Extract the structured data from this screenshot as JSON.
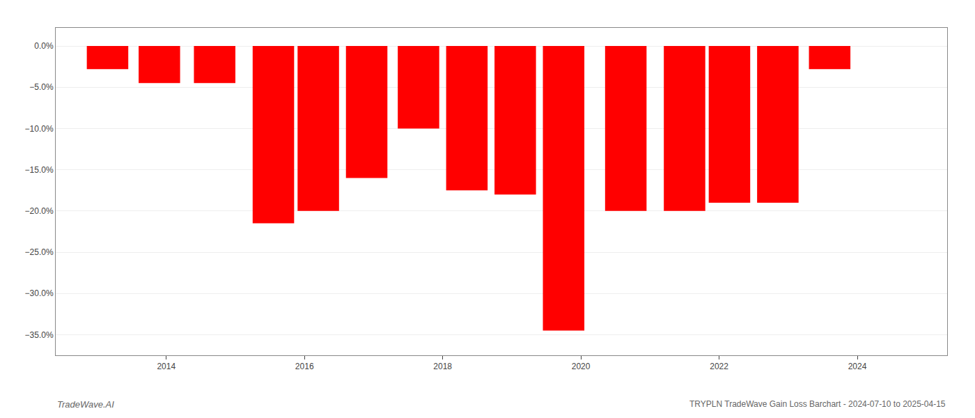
{
  "chart_data": {
    "type": "bar",
    "title": "TRYPLN TradeWave Gain Loss Barchart - 2024-07-10 to 2025-04-15",
    "annotations": [
      "TradeWave.AI"
    ],
    "x": [
      2013.15,
      2013.9,
      2014.7,
      2015.55,
      2016.2,
      2016.9,
      2017.65,
      2018.35,
      2019.05,
      2019.75,
      2020.65,
      2021.5,
      2022.15,
      2022.85,
      2023.6
    ],
    "values": [
      -0.028,
      -0.045,
      -0.045,
      -0.215,
      -0.2,
      -0.16,
      -0.1,
      -0.175,
      -0.18,
      -0.345,
      -0.2,
      -0.2,
      -0.19,
      -0.19,
      -0.028
    ],
    "color": "#ff0000",
    "xlim": [
      2012.4,
      2025.3
    ],
    "xticks": [
      2014,
      2016,
      2018,
      2020,
      2022,
      2024
    ],
    "ylim": [
      -0.375,
      0.022
    ],
    "yticks": [
      {
        "value": 0.0,
        "label": "0.0%"
      },
      {
        "value": -0.05,
        "label": "−5.0%"
      },
      {
        "value": -0.1,
        "label": "−10.0%"
      },
      {
        "value": -0.15,
        "label": "−15.0%"
      },
      {
        "value": -0.2,
        "label": "−20.0%"
      },
      {
        "value": -0.25,
        "label": "−25.0%"
      },
      {
        "value": -0.3,
        "label": "−30.0%"
      },
      {
        "value": -0.35,
        "label": "−35.0%"
      }
    ],
    "grid": true
  }
}
